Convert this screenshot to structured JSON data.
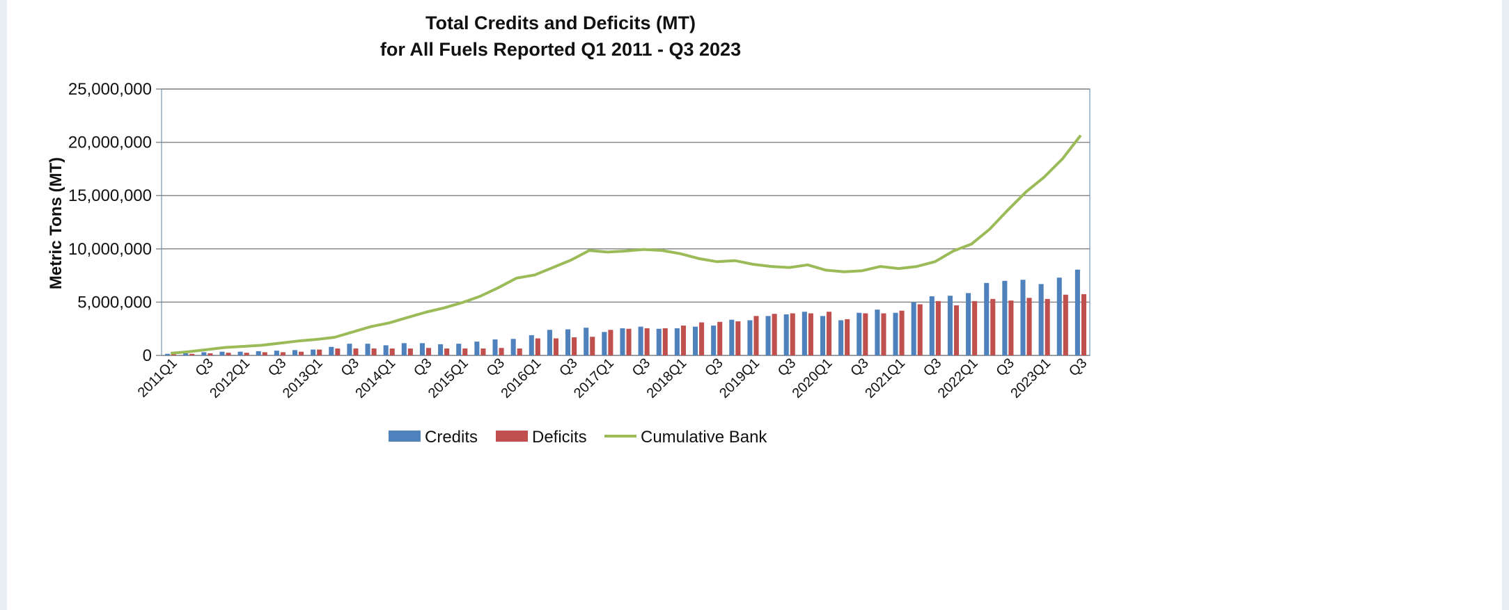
{
  "chart_data": {
    "type": "bar",
    "title": "Total Credits and Deficits (MT)",
    "subtitle": "for All Fuels Reported Q1 2011 - Q3 2023",
    "ylabel": "Metric Tons (MT)",
    "xlabel": "",
    "ylim": [
      0,
      25000000
    ],
    "y_ticks": [
      "0",
      "5,000,000",
      "10,000,000",
      "15,000,000",
      "20,000,000",
      "25,000,000"
    ],
    "y_tick_values": [
      0,
      5000000,
      10000000,
      15000000,
      20000000,
      25000000
    ],
    "grid": true,
    "legend_position": "bottom",
    "x_tick_labels": [
      "2011Q1",
      "Q3",
      "2012Q1",
      "Q3",
      "2013Q1",
      "Q3",
      "2014Q1",
      "Q3",
      "2015Q1",
      "Q3",
      "2016Q1",
      "Q3",
      "2017Q1",
      "Q3",
      "2018Q1",
      "Q3",
      "2019Q1",
      "Q3",
      "2020Q1",
      "Q3",
      "2021Q1",
      "Q3",
      "2022Q1",
      "Q3",
      "2023Q1",
      "Q3"
    ],
    "categories": [
      "2011Q1",
      "2011Q2",
      "2011Q3",
      "2011Q4",
      "2012Q1",
      "2012Q2",
      "2012Q3",
      "2012Q4",
      "2013Q1",
      "2013Q2",
      "2013Q3",
      "2013Q4",
      "2014Q1",
      "2014Q2",
      "2014Q3",
      "2014Q4",
      "2015Q1",
      "2015Q2",
      "2015Q3",
      "2015Q4",
      "2016Q1",
      "2016Q2",
      "2016Q3",
      "2016Q4",
      "2017Q1",
      "2017Q2",
      "2017Q3",
      "2017Q4",
      "2018Q1",
      "2018Q2",
      "2018Q3",
      "2018Q4",
      "2019Q1",
      "2019Q2",
      "2019Q3",
      "2019Q4",
      "2020Q1",
      "2020Q2",
      "2020Q3",
      "2020Q4",
      "2021Q1",
      "2021Q2",
      "2021Q3",
      "2021Q4",
      "2022Q1",
      "2022Q2",
      "2022Q3",
      "2022Q4",
      "2023Q1",
      "2023Q2",
      "2023Q3"
    ],
    "series": [
      {
        "name": "Credits",
        "type": "bar",
        "color": "#4f81bd",
        "values": [
          150000,
          200000,
          300000,
          350000,
          350000,
          400000,
          450000,
          500000,
          550000,
          800000,
          1100000,
          1100000,
          950000,
          1150000,
          1150000,
          1050000,
          1100000,
          1300000,
          1500000,
          1550000,
          1900000,
          2400000,
          2450000,
          2600000,
          2200000,
          2550000,
          2700000,
          2500000,
          2550000,
          2700000,
          2800000,
          3350000,
          3300000,
          3700000,
          3850000,
          4100000,
          3700000,
          3300000,
          4000000,
          4300000,
          4000000,
          5000000,
          5550000,
          5600000,
          5850000,
          6800000,
          7000000,
          7100000,
          6700000,
          7300000,
          8050000
        ]
      },
      {
        "name": "Deficits",
        "type": "bar",
        "color": "#c0504d",
        "values": [
          100000,
          150000,
          200000,
          250000,
          250000,
          300000,
          300000,
          350000,
          550000,
          650000,
          650000,
          650000,
          650000,
          650000,
          700000,
          650000,
          650000,
          650000,
          700000,
          650000,
          1600000,
          1600000,
          1700000,
          1750000,
          2400000,
          2500000,
          2550000,
          2550000,
          2800000,
          3100000,
          3150000,
          3200000,
          3700000,
          3900000,
          3950000,
          3950000,
          4100000,
          3400000,
          3950000,
          3950000,
          4200000,
          4800000,
          5100000,
          4700000,
          5100000,
          5300000,
          5150000,
          5400000,
          5300000,
          5700000,
          5750000
        ]
      },
      {
        "name": "Cumulative Bank",
        "type": "line",
        "color": "#9bbb59",
        "values": [
          200000,
          350000,
          550000,
          750000,
          850000,
          950000,
          1150000,
          1350000,
          1500000,
          1700000,
          2200000,
          2700000,
          3050000,
          3550000,
          4050000,
          4450000,
          4950000,
          5550000,
          6350000,
          7250000,
          7550000,
          8250000,
          8950000,
          9850000,
          9700000,
          9800000,
          9950000,
          9850000,
          9550000,
          9100000,
          8800000,
          8900000,
          8550000,
          8350000,
          8250000,
          8500000,
          8000000,
          7850000,
          7950000,
          8350000,
          8150000,
          8350000,
          8800000,
          9800000,
          10450000,
          11850000,
          13650000,
          15350000,
          16750000,
          18450000,
          20650000
        ]
      }
    ]
  }
}
